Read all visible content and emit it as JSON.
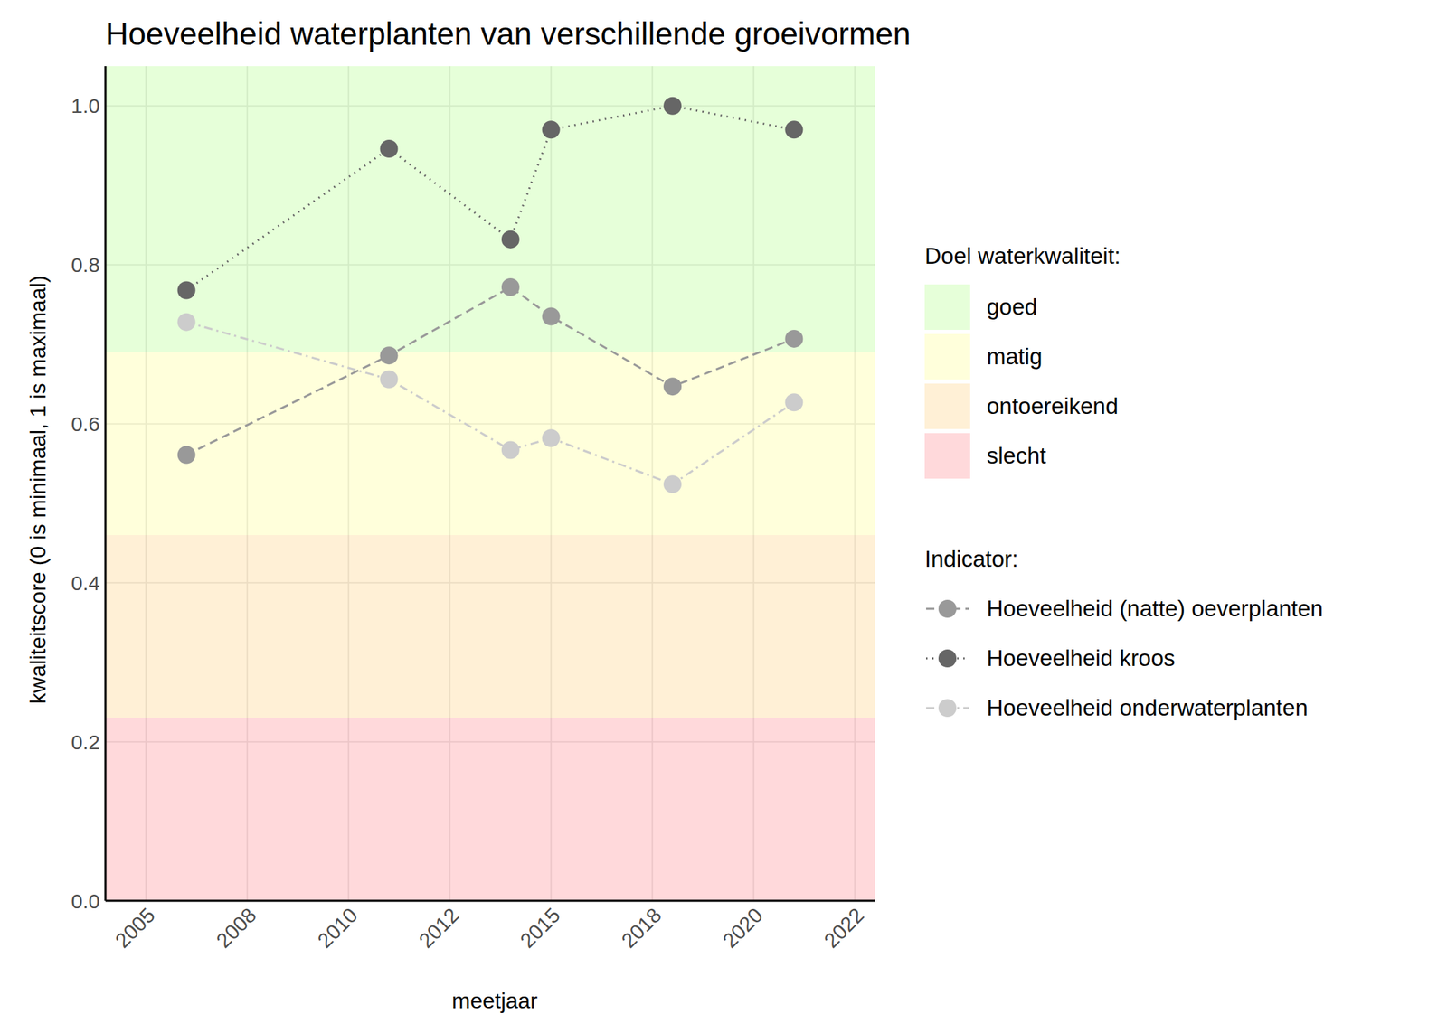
{
  "chart_data": {
    "type": "line",
    "title": "Hoeveelheid waterplanten van verschillende groeivormen",
    "x_label": "meetjaar",
    "y_label": "kwaliteitscore (0 is minimaal, 1 is maximaal)",
    "x": [
      2006,
      2011,
      2014,
      2015,
      2018,
      2021
    ],
    "xlim": [
      2004,
      2023
    ],
    "xticks": [
      2005,
      {
        "value": 2007.5,
        "label": "2008"
      },
      2010,
      {
        "value": 2012.5,
        "label": "2012"
      },
      2015,
      {
        "value": 2017.5,
        "label": "2018"
      },
      2020,
      {
        "value": 2022.5,
        "label": "2022"
      }
    ],
    "ylim": [
      0,
      1.05
    ],
    "yticks": [
      {
        "value": 0,
        "label": "0.0"
      },
      {
        "value": 0.2,
        "label": "0.2"
      },
      {
        "value": 0.4,
        "label": "0.4"
      },
      {
        "value": 0.6,
        "label": "0.6"
      },
      {
        "value": 0.8,
        "label": "0.8"
      },
      {
        "value": 1,
        "label": "1.0"
      }
    ],
    "grid": true,
    "legend": "right",
    "bands": {
      "title": "Doel waterkwaliteit:",
      "items": [
        {
          "name": "goed",
          "color": "#cdffb3",
          "range": [
            0.69,
            1.05
          ]
        },
        {
          "name": "matig",
          "color": "#ffffb7",
          "range": [
            0.46,
            0.69
          ]
        },
        {
          "name": "ontoereikend",
          "color": "#ffe1ad",
          "range": [
            0.23,
            0.46
          ]
        },
        {
          "name": "slecht",
          "color": "#ffb3b7",
          "range": [
            0,
            0.23
          ]
        }
      ]
    },
    "series_legend_title": "Indicator:",
    "series": [
      {
        "name": "Hoeveelheid (natte) oeverplanten",
        "color": "#999999",
        "line_style": "dashed",
        "marker": "circle",
        "values": [
          0.561,
          0.686,
          0.772,
          0.735,
          0.647,
          0.707
        ]
      },
      {
        "name": "Hoeveelheid kroos",
        "color": "#666666",
        "line_style": "dotted",
        "marker": "circle",
        "values": [
          0.768,
          0.946,
          0.832,
          0.97,
          1.0,
          0.97
        ]
      },
      {
        "name": "Hoeveelheid onderwaterplanten",
        "color": "#cccccc",
        "line_style": "dashdot",
        "marker": "circle",
        "values": [
          0.728,
          0.656,
          0.567,
          0.582,
          0.524,
          0.627
        ]
      }
    ]
  }
}
